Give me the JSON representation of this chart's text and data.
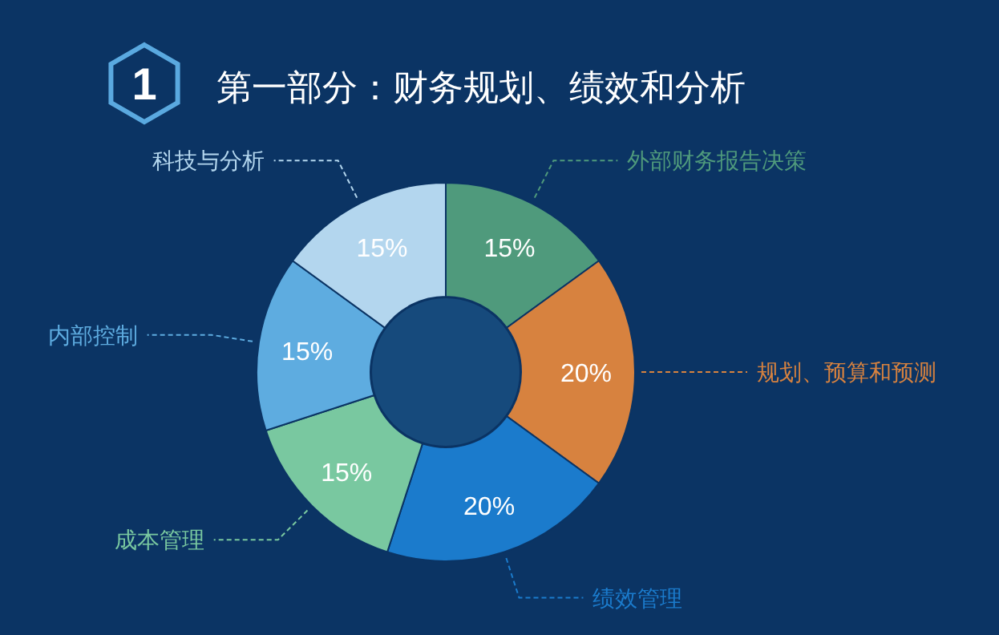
{
  "chart_data": {
    "type": "donut",
    "title": "第一部分：财务规划、绩效和分析",
    "annotations": [
      "1"
    ],
    "categories": [
      "外部财务报告决策",
      "规划、预算和预测",
      "绩效管理",
      "成本管理",
      "内部控制",
      "科技与分析"
    ],
    "values": [
      15,
      20,
      20,
      15,
      15,
      15
    ],
    "value_labels": [
      "15%",
      "20%",
      "20%",
      "15%",
      "15%",
      "15%"
    ],
    "colors": [
      "#4f9a7c",
      "#d7823f",
      "#1b7bcc",
      "#79c8a0",
      "#5eace0",
      "#b3d6ee"
    ]
  }
}
